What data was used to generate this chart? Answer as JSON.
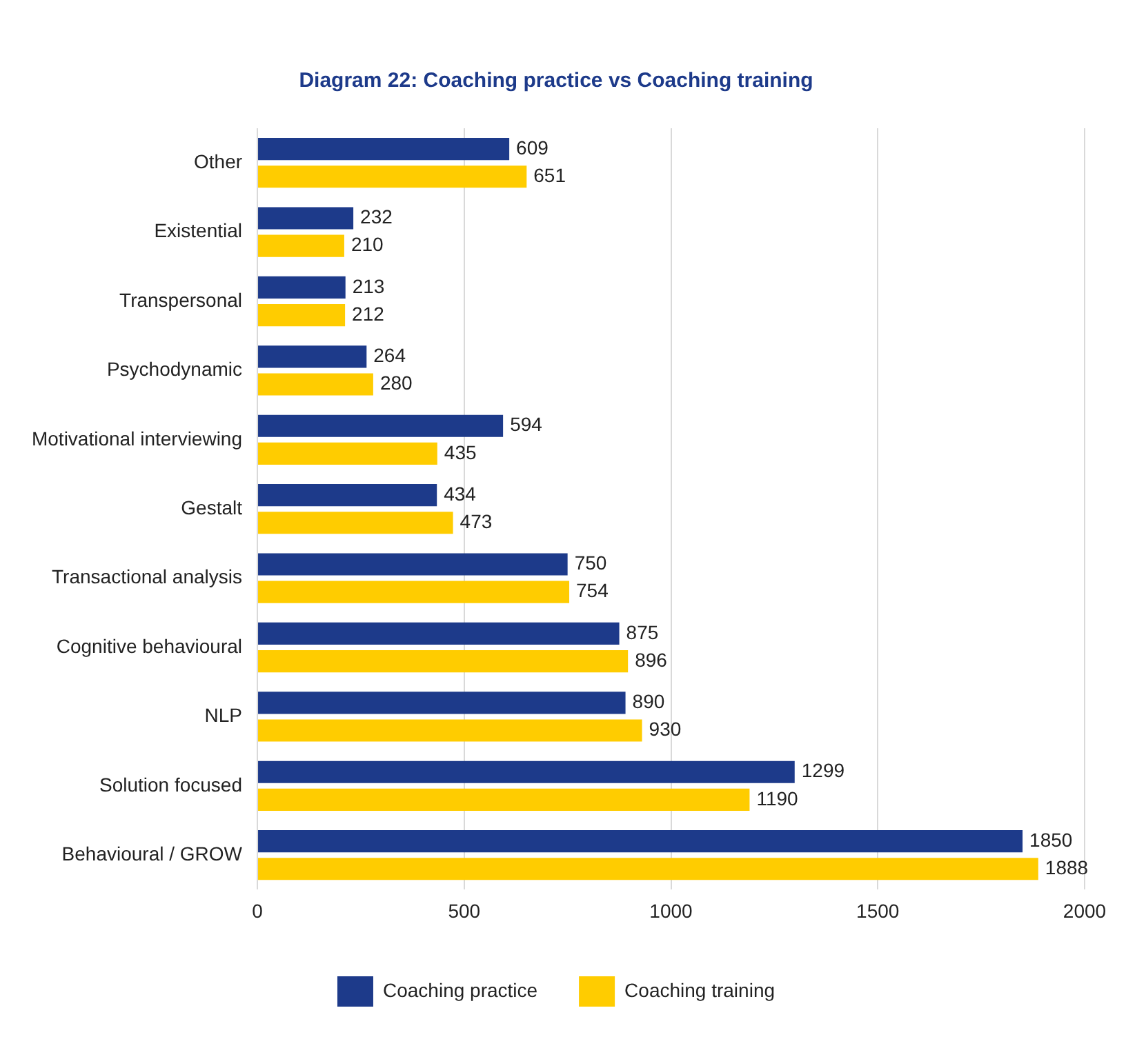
{
  "chart_data": {
    "type": "bar",
    "orientation": "horizontal",
    "title": "Diagram 22: Coaching practice vs Coaching training",
    "categories": [
      "Other",
      "Existential",
      "Transpersonal",
      "Psychodynamic",
      "Motivational interviewing",
      "Gestalt",
      "Transactional analysis",
      "Cognitive behavioural",
      "NLP",
      "Solution focused",
      "Behavioural / GROW"
    ],
    "series": [
      {
        "name": "Coaching practice",
        "color": "#1d3a8a",
        "values": [
          609,
          232,
          213,
          264,
          594,
          434,
          750,
          875,
          890,
          1299,
          1850
        ]
      },
      {
        "name": "Coaching training",
        "color": "#ffcc00",
        "values": [
          651,
          210,
          212,
          280,
          435,
          473,
          754,
          896,
          930,
          1190,
          1888
        ]
      }
    ],
    "xlim": [
      0,
      2000
    ],
    "xticks": [
      0,
      500,
      1000,
      1500,
      2000
    ],
    "grid": "x",
    "legend": "bottom",
    "data_labels": true
  }
}
